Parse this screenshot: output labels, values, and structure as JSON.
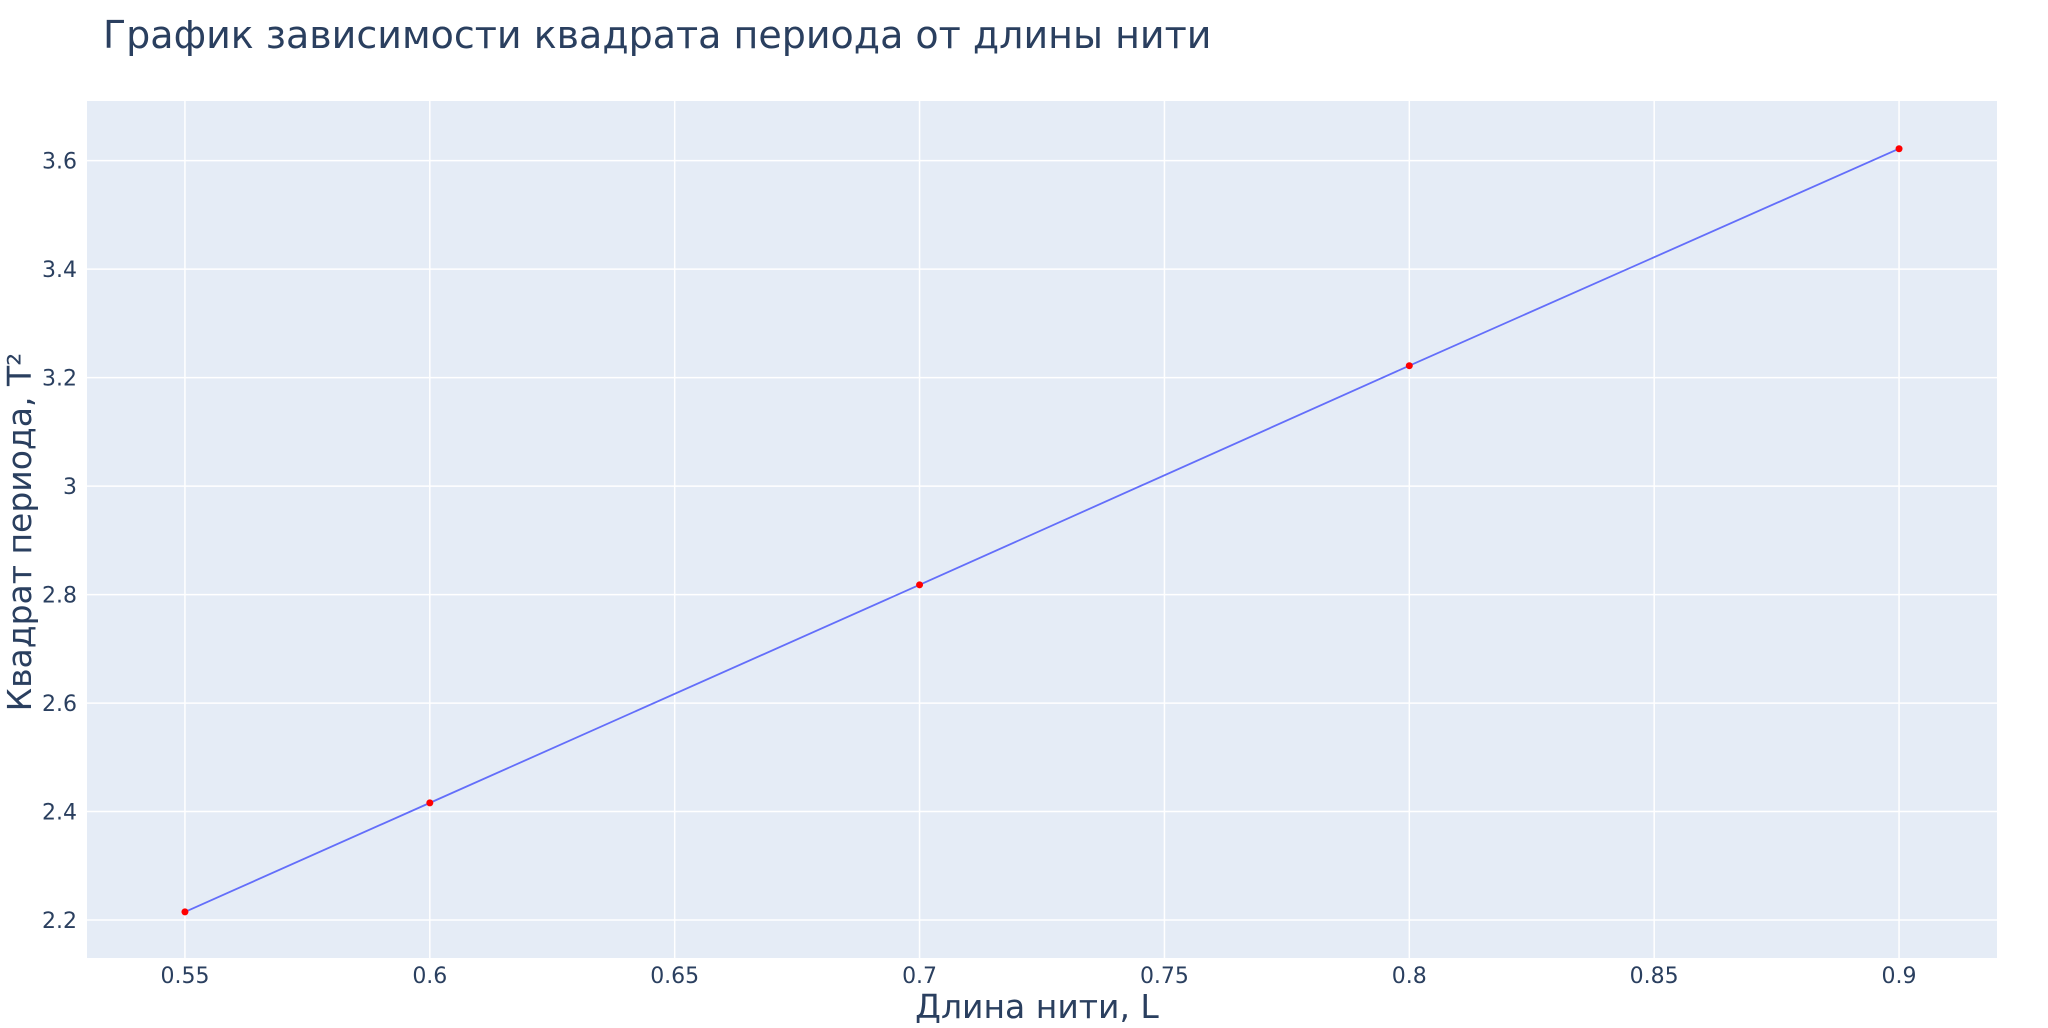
{
  "chart_data": {
    "type": "line",
    "title": "График зависимости квадрата периода от длины нити",
    "xlabel": "Длина нити, L",
    "ylabel": "Квадрат периода, T²",
    "xlim": [
      0.53,
      0.92
    ],
    "ylim": [
      2.13,
      3.71
    ],
    "x_ticks": [
      0.55,
      0.6,
      0.65,
      0.7,
      0.75,
      0.8,
      0.85,
      0.9
    ],
    "x_tick_labels": [
      "0.55",
      "0.6",
      "0.65",
      "0.7",
      "0.75",
      "0.8",
      "0.85",
      "0.9"
    ],
    "y_ticks": [
      2.2,
      2.4,
      2.6,
      2.8,
      3.0,
      3.2,
      3.4,
      3.6
    ],
    "y_tick_labels": [
      "2.2",
      "2.4",
      "2.6",
      "2.8",
      "3",
      "3.2",
      "3.4",
      "3.6"
    ],
    "grid": true,
    "legend": "none",
    "series": [
      {
        "x": [
          0.55,
          0.6,
          0.7,
          0.8,
          0.9
        ],
        "y": [
          2.215,
          2.416,
          2.818,
          3.222,
          3.622
        ],
        "line_color": "#636efa",
        "marker_color": "#ff0000"
      }
    ]
  },
  "colors": {
    "plot_background": "#e5ecf6",
    "grid": "#ffffff",
    "text": "#2a3f5f"
  }
}
